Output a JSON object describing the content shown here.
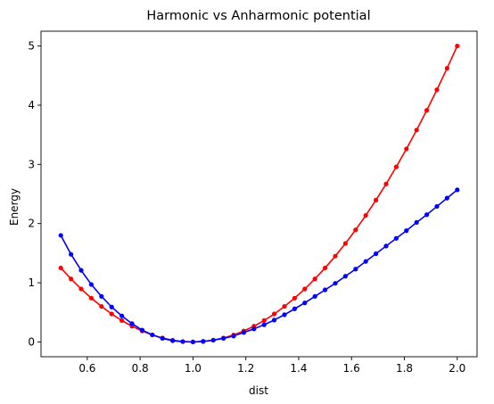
{
  "chart_data": {
    "type": "line",
    "title": "Harmonic vs Anharmonic potential",
    "xlabel": "dist",
    "ylabel": "Energy",
    "xlim": [
      0.425,
      2.075
    ],
    "ylim": [
      -0.25,
      5.25
    ],
    "xticks": [
      "0.6",
      "0.8",
      "1.0",
      "1.2",
      "1.4",
      "1.6",
      "1.8",
      "2.0"
    ],
    "yticks": [
      "0",
      "1",
      "2",
      "3",
      "4",
      "5"
    ],
    "grid": false,
    "legend": "none",
    "x": [
      0.5,
      0.5385,
      0.5769,
      0.6154,
      0.6538,
      0.6923,
      0.7308,
      0.7692,
      0.8077,
      0.8462,
      0.8846,
      0.9231,
      0.9615,
      1.0,
      1.0385,
      1.0769,
      1.1154,
      1.1538,
      1.1923,
      1.2308,
      1.2692,
      1.3077,
      1.3462,
      1.3846,
      1.4231,
      1.4615,
      1.5,
      1.5385,
      1.5769,
      1.6154,
      1.6538,
      1.6923,
      1.7308,
      1.7692,
      1.8077,
      1.8462,
      1.8846,
      1.9231,
      1.9615,
      2.0
    ],
    "series": [
      {
        "color": "#ff0000",
        "values": [
          1.25,
          1.065,
          0.895,
          0.74,
          0.6,
          0.473,
          0.362,
          0.266,
          0.185,
          0.118,
          0.067,
          0.03,
          0.007,
          0.0,
          0.007,
          0.03,
          0.067,
          0.118,
          0.185,
          0.266,
          0.362,
          0.473,
          0.6,
          0.74,
          0.895,
          1.065,
          1.25,
          1.45,
          1.664,
          1.893,
          2.137,
          2.396,
          2.669,
          2.958,
          3.261,
          3.58,
          3.913,
          4.261,
          4.624,
          5.0
        ]
      },
      {
        "color": "#0000ff",
        "values": [
          1.8,
          1.48,
          1.21,
          0.97,
          0.77,
          0.59,
          0.44,
          0.31,
          0.2,
          0.12,
          0.06,
          0.02,
          0.005,
          0.0,
          0.01,
          0.03,
          0.06,
          0.1,
          0.16,
          0.22,
          0.29,
          0.37,
          0.46,
          0.56,
          0.66,
          0.77,
          0.88,
          0.99,
          1.11,
          1.23,
          1.36,
          1.49,
          1.62,
          1.75,
          1.88,
          2.02,
          2.15,
          2.29,
          2.43,
          2.57
        ]
      }
    ]
  }
}
